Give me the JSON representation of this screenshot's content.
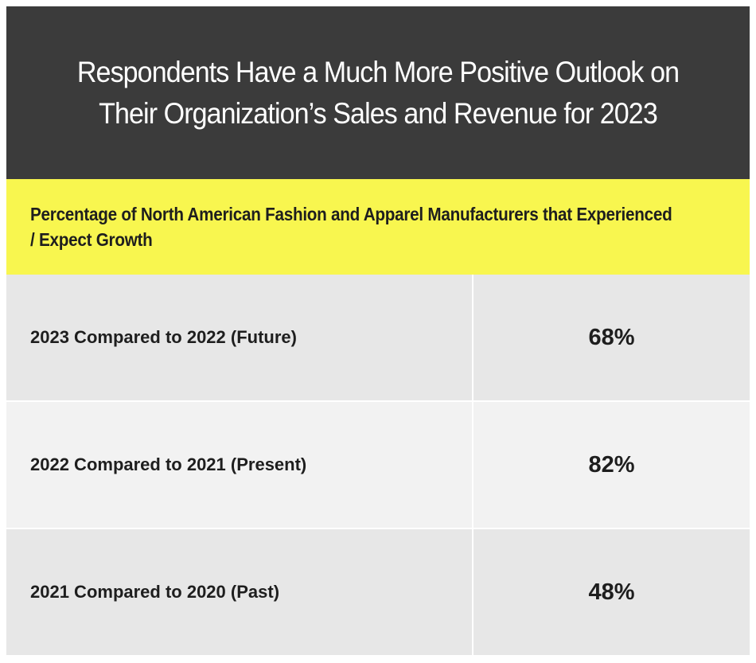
{
  "header": {
    "title": "Respondents Have a Much More Positive Outlook on Their Organization’s Sales and Revenue for 2023"
  },
  "subtitle": "Percentage of North American Fashion and Apparel Manufacturers that Experienced / Expect Growth",
  "table": {
    "rows": [
      [
        "2023 Compared to 2022 (Future)",
        "68%"
      ],
      [
        "2022 Compared to 2021 (Present)",
        "82%"
      ],
      [
        "2021 Compared to 2020 (Past)",
        "48%"
      ]
    ]
  }
}
